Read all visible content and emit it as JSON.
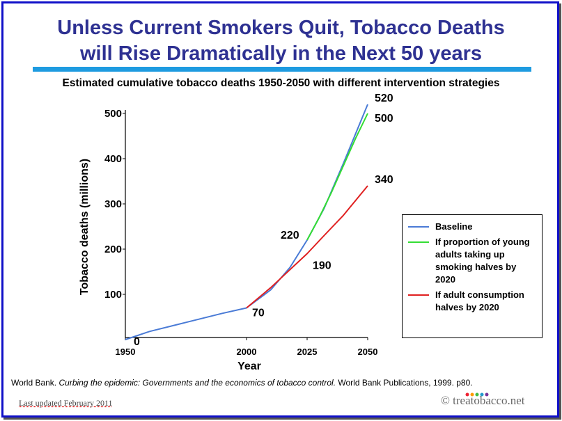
{
  "chart_data": {
    "type": "line",
    "title": [
      "Unless Current Smokers Quit, Tobacco Deaths",
      "will Rise Dramatically in the Next 50 years"
    ],
    "subtitle": "Estimated cumulative tobacco deaths 1950-2050 with different intervention strategies",
    "x_label": "Year",
    "y_label": "Tobacco deaths (millions)",
    "xlim": [
      1950,
      2050
    ],
    "xticks": [
      1950,
      2000,
      2025,
      2050
    ],
    "ylim": [
      0,
      520
    ],
    "yticks": [
      100,
      200,
      300,
      400,
      500
    ],
    "series": [
      {
        "name": "Baseline",
        "color": "#4a7bd6",
        "x": [
          1950,
          1960,
          1975,
          1990,
          2000,
          2010,
          2018,
          2025,
          2032,
          2040,
          2050
        ],
        "values": [
          0,
          18,
          38,
          58,
          70,
          110,
          160,
          220,
          290,
          390,
          520
        ]
      },
      {
        "name": "If proportion of young adults taking up smoking halves by 2020",
        "color": "#33dd33",
        "x": [
          2025,
          2030,
          2035,
          2040,
          2045,
          2050
        ],
        "values": [
          220,
          270,
          325,
          385,
          445,
          500
        ]
      },
      {
        "name": "If adult consumption halves by 2020",
        "color": "#e02020",
        "x": [
          2000,
          2010,
          2018,
          2025,
          2032,
          2040,
          2050
        ],
        "values": [
          70,
          115,
          155,
          190,
          230,
          275,
          340
        ]
      }
    ],
    "annotations": [
      {
        "x": 1950,
        "y": 0
      },
      {
        "x": 2000,
        "y": 70
      },
      {
        "x": 2025,
        "y": 220
      },
      {
        "x": 2025,
        "y": 190
      },
      {
        "x": 2050,
        "y": 520
      },
      {
        "x": 2050,
        "y": 500
      },
      {
        "x": 2050,
        "y": 340
      }
    ],
    "citation": [
      "World Bank.",
      "Curbing the epidemic: Governments and the economics of tobacco control.",
      "World Bank Publications, 1999. p80."
    ],
    "footer": "Last updated February 2011",
    "brand": "© treatobacco.net"
  }
}
